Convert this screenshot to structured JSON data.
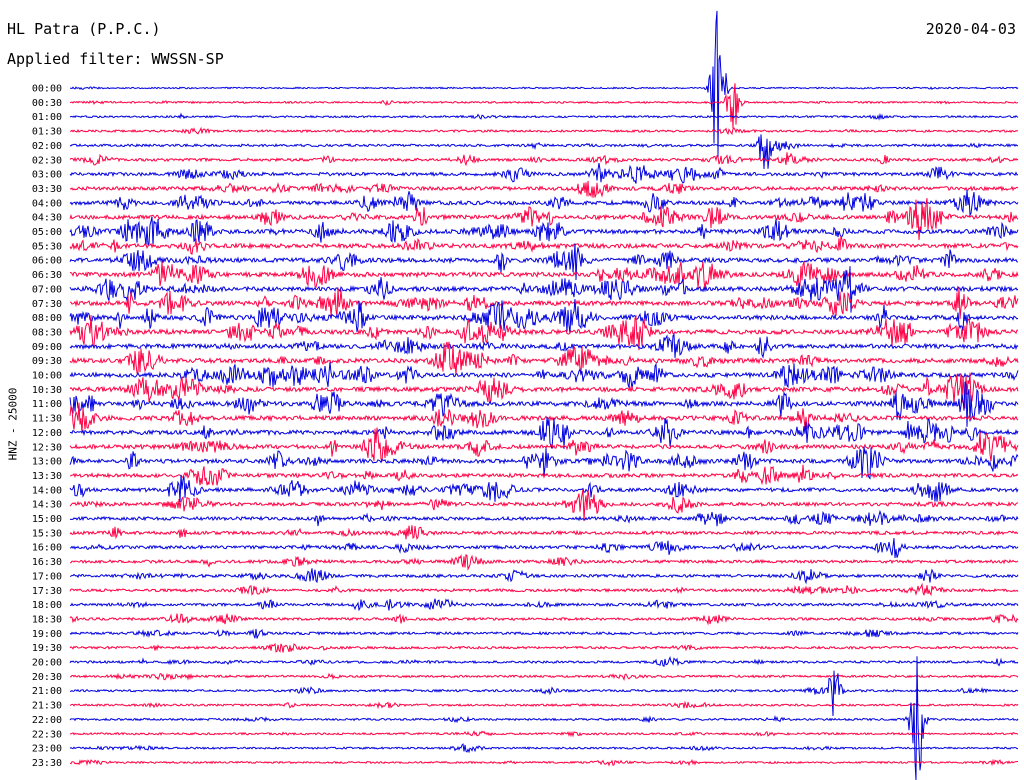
{
  "header": {
    "station": "HL Patra (P.P.C.)",
    "filter": "Applied filter: WWSSN-SP",
    "date": "2020-04-03"
  },
  "axis": {
    "channel_label": "HNZ - 25000"
  },
  "colors": {
    "even_row": "#0000e0",
    "odd_row": "#ff0044"
  },
  "chart_data": {
    "type": "helicorder",
    "title": "HL Patra (P.P.C.)",
    "subtitle": "Applied filter: WWSSN-SP",
    "ylabel": "HNZ - 25000",
    "row_colors": [
      "#0000e0",
      "#ff0044"
    ],
    "row_labels": [
      "00:00",
      "00:30",
      "01:00",
      "01:30",
      "02:00",
      "02:30",
      "03:00",
      "03:30",
      "04:00",
      "04:30",
      "05:00",
      "05:30",
      "06:00",
      "06:30",
      "07:00",
      "07:30",
      "08:00",
      "08:30",
      "09:00",
      "09:30",
      "10:00",
      "10:30",
      "11:00",
      "11:30",
      "12:00",
      "12:30",
      "13:00",
      "13:30",
      "14:00",
      "14:30",
      "15:00",
      "15:30",
      "16:00",
      "16:30",
      "17:00",
      "17:30",
      "18:00",
      "18:30",
      "19:00",
      "19:30",
      "20:00",
      "20:30",
      "21:00",
      "21:30",
      "22:00",
      "22:30",
      "23:00",
      "23:30"
    ],
    "activity_level": [
      0.08,
      0.16,
      0.2,
      0.28,
      0.38,
      0.48,
      0.62,
      0.72,
      0.82,
      0.88,
      0.92,
      0.95,
      0.97,
      1.0,
      1.0,
      1.0,
      1.0,
      1.0,
      1.0,
      1.0,
      1.0,
      1.0,
      1.0,
      0.98,
      0.95,
      0.9,
      0.85,
      0.8,
      0.75,
      0.7,
      0.66,
      0.62,
      0.58,
      0.55,
      0.52,
      0.48,
      0.45,
      0.42,
      0.4,
      0.36,
      0.33,
      0.3,
      0.28,
      0.26,
      0.24,
      0.22,
      0.2,
      0.18
    ],
    "notable_events": [
      {
        "row": 0,
        "minute": 20.5,
        "amplitude": 95
      },
      {
        "row": 1,
        "minute": 21.0,
        "amplitude": 30
      },
      {
        "row": 4,
        "minute": 22.0,
        "amplitude": 28
      },
      {
        "row": 42,
        "minute": 24.2,
        "amplitude": 32
      },
      {
        "row": 44,
        "minute": 26.8,
        "amplitude": 70
      }
    ]
  }
}
